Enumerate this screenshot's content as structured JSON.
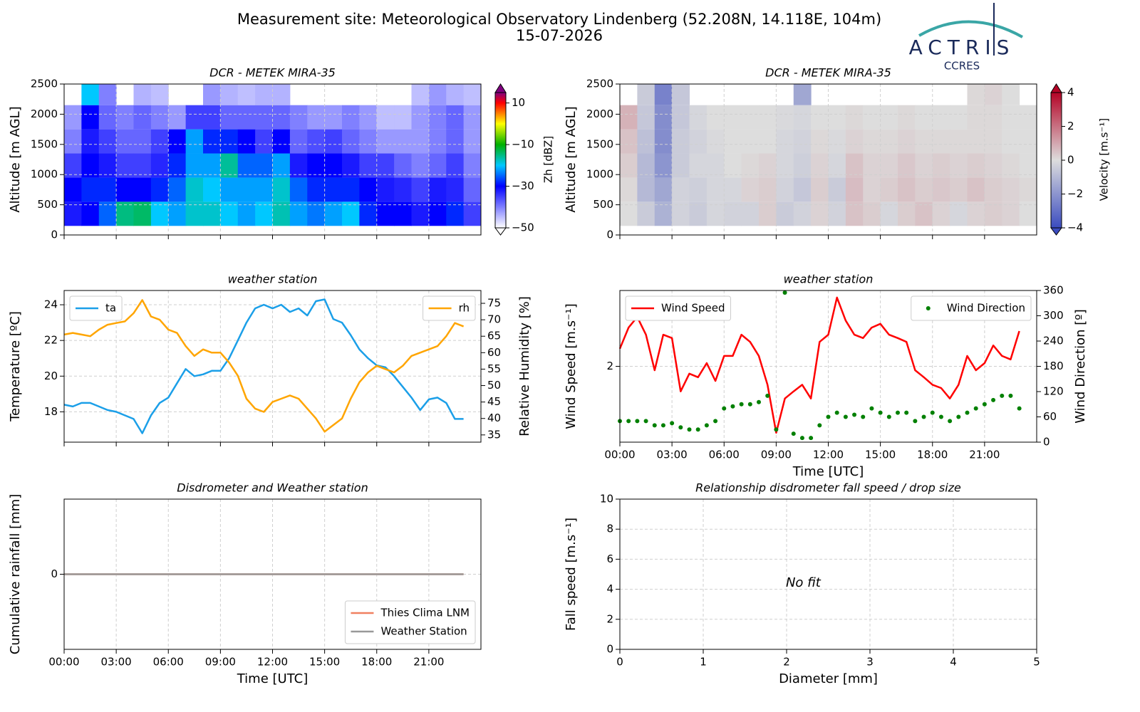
{
  "header": {
    "title": "Measurement site: Meteorological Observatory Lindenberg (52.208N, 14.118E, 104m)",
    "date": "15-07-2026",
    "logo": "ACTRIS",
    "logo_sub": "CCRES"
  },
  "chart_data": [
    {
      "type": "heatmap",
      "title": "DCR - METEK MIRA-35",
      "ylabel": "Altitude [m AGL]",
      "colorbar_label": "Zh [dBZ]",
      "xlim": [
        0,
        24
      ],
      "xticks": [
        0,
        3,
        6,
        9,
        12,
        15,
        18,
        21
      ],
      "xtick_labels": false,
      "ylim": [
        0,
        2500
      ],
      "yticks": [
        0,
        500,
        1000,
        1500,
        2000,
        2500
      ],
      "grid": true,
      "x_edges": [
        0,
        1,
        2,
        3,
        4,
        5,
        6,
        7,
        8,
        9,
        10,
        11,
        12,
        13,
        14,
        15,
        16,
        17,
        18,
        19,
        20,
        21,
        22,
        23,
        24
      ],
      "y_edges": [
        150,
        550,
        950,
        1350,
        1750,
        2150,
        2500
      ],
      "zlim": [
        -50,
        15
      ],
      "zticks": [
        {
          "value": -50,
          "label": "−50"
        },
        {
          "value": -30,
          "label": "−30"
        },
        {
          "value": -10,
          "label": "−10"
        },
        10
      ],
      "colorscale": [
        {
          "value": -50,
          "color": "#ffffff"
        },
        {
          "value": -30,
          "color": "#0000ff"
        },
        {
          "value": -20,
          "color": "#00c8ff"
        },
        {
          "value": -10,
          "color": "#00b000"
        },
        {
          "value": 0,
          "color": "#ffff00"
        },
        {
          "value": 10,
          "color": "#ff0000"
        },
        {
          "value": 15,
          "color": "#800080"
        }
      ],
      "z": [
        [
          -32,
          -30,
          -25,
          -15,
          -14,
          -20,
          -22,
          -18,
          -18,
          -20,
          -22,
          -20,
          -17,
          -22,
          -24,
          -22,
          -20,
          -28,
          -30,
          -30,
          -32,
          -30,
          -28,
          -35
        ],
        [
          -30,
          -28,
          -28,
          -30,
          -30,
          -28,
          -25,
          -18,
          -20,
          -22,
          -22,
          -22,
          -18,
          -25,
          -28,
          -28,
          -28,
          -30,
          -32,
          -33,
          -35,
          -32,
          -33,
          -38
        ],
        [
          -35,
          -30,
          -32,
          -35,
          -35,
          -33,
          -28,
          -22,
          -22,
          -16,
          -25,
          -25,
          -22,
          -32,
          -30,
          -30,
          -32,
          -35,
          -35,
          -38,
          -40,
          -38,
          -35,
          -40
        ],
        [
          -40,
          -32,
          -35,
          -38,
          -38,
          -35,
          -30,
          -22,
          -28,
          -28,
          -30,
          -35,
          -30,
          -38,
          -36,
          -35,
          -38,
          -40,
          -42,
          -42,
          -42,
          -40,
          -38,
          -42
        ],
        [
          -42,
          -30,
          -38,
          -40,
          -38,
          -40,
          -42,
          -35,
          -35,
          -38,
          -38,
          -38,
          -38,
          -40,
          -42,
          -42,
          -40,
          -42,
          -45,
          -45,
          -42,
          -40,
          -38,
          -42
        ],
        [
          null,
          -20,
          -40,
          null,
          -44,
          -45,
          null,
          null,
          -42,
          -44,
          -45,
          -44,
          -44,
          null,
          null,
          null,
          null,
          null,
          null,
          null,
          -45,
          -42,
          -44,
          -45
        ]
      ]
    },
    {
      "type": "heatmap",
      "title": "DCR - METEK MIRA-35",
      "ylabel": "Altitude [m AGL]",
      "colorbar_label": "Velocity [m.s⁻¹]",
      "xlim": [
        0,
        24
      ],
      "xticks": [
        0,
        3,
        6,
        9,
        12,
        15,
        18,
        21
      ],
      "xtick_labels": false,
      "ylim": [
        0,
        2500
      ],
      "yticks": [
        0,
        500,
        1000,
        1500,
        2000,
        2500
      ],
      "grid": true,
      "x_edges": [
        0,
        1,
        2,
        3,
        4,
        5,
        6,
        7,
        8,
        9,
        10,
        11,
        12,
        13,
        14,
        15,
        16,
        17,
        18,
        19,
        20,
        21,
        22,
        23,
        24
      ],
      "y_edges": [
        150,
        550,
        950,
        1350,
        1750,
        2150,
        2500
      ],
      "zlim": [
        -4,
        4
      ],
      "zticks": [
        {
          "value": -4,
          "label": "−4"
        },
        {
          "value": -2,
          "label": "−2"
        },
        0,
        2,
        4
      ],
      "colorscale": [
        {
          "value": -4,
          "color": "#3b4cc0"
        },
        {
          "value": 0,
          "color": "#dddddd"
        },
        {
          "value": 4,
          "color": "#b40426"
        }
      ],
      "z": [
        [
          0,
          -0.5,
          -1.2,
          -0.3,
          -0.5,
          -0.2,
          -0.3,
          -0.3,
          0.3,
          -0.5,
          -0.3,
          0.2,
          -0.3,
          0.5,
          0.3,
          -0.2,
          0.3,
          0.5,
          0.2,
          -0.2,
          0.2,
          0.3,
          0.2,
          0
        ],
        [
          0.1,
          -1.0,
          -1.5,
          -0.3,
          -0.4,
          -0.2,
          -0.2,
          0.2,
          0.3,
          -0.3,
          -0.6,
          0.3,
          -0.5,
          0.6,
          0.2,
          0.3,
          0.5,
          0.3,
          0.4,
          0.3,
          0.5,
          0.3,
          0.2,
          0.1
        ],
        [
          0.3,
          -1.0,
          -2.0,
          -0.5,
          -0.2,
          -0.2,
          0,
          0.1,
          0.2,
          -0.2,
          -0.4,
          0.2,
          -0.2,
          0.5,
          0.2,
          0.2,
          0.4,
          0.2,
          0.3,
          0.2,
          0.3,
          0.2,
          0.1,
          0
        ],
        [
          0.5,
          -0.8,
          -2.2,
          -0.5,
          -0.3,
          -0.1,
          0,
          0,
          0,
          -0.2,
          -0.3,
          0.1,
          -0.1,
          0.2,
          0.1,
          0.1,
          0.2,
          0.1,
          0.1,
          0.1,
          0.1,
          0.1,
          0,
          0
        ],
        [
          0.8,
          -0.6,
          -2.2,
          -0.6,
          -0.2,
          0,
          0,
          0,
          0,
          -0.1,
          -0.2,
          0,
          0,
          0.1,
          0,
          0,
          0.1,
          0,
          0,
          0,
          0.1,
          0.1,
          0,
          0
        ],
        [
          null,
          -0.5,
          -2.5,
          -0.6,
          null,
          null,
          null,
          null,
          null,
          null,
          -1.5,
          null,
          null,
          null,
          null,
          null,
          null,
          null,
          null,
          null,
          0.1,
          0.2,
          0,
          null
        ]
      ]
    },
    {
      "type": "line",
      "title": "weather station",
      "ylabel": "Temperature [ºC]",
      "y2label": "Relative Humidity [%]",
      "xlim": [
        0,
        24
      ],
      "xticks": [
        0,
        3,
        6,
        9,
        12,
        15,
        18,
        21
      ],
      "xtick_labels": false,
      "ylim": [
        16.3,
        24.8
      ],
      "yticks": [
        18,
        20,
        22,
        24
      ],
      "y2lim": [
        32.8,
        78.9
      ],
      "y2ticks": [
        35,
        40,
        45,
        50,
        55,
        60,
        65,
        70,
        75
      ],
      "grid": true,
      "x": [
        0,
        0.5,
        1,
        1.5,
        2,
        2.5,
        3,
        3.5,
        4,
        4.5,
        5,
        5.5,
        6,
        6.5,
        7,
        7.5,
        8,
        8.5,
        9,
        9.5,
        10,
        10.5,
        11,
        11.5,
        12,
        12.5,
        13,
        13.5,
        14,
        14.5,
        15,
        15.5,
        16,
        16.5,
        17,
        17.5,
        18,
        18.5,
        19,
        19.5,
        20,
        20.5,
        21,
        21.5,
        22,
        22.5,
        23
      ],
      "series": [
        {
          "name": "ta",
          "color": "#1b9fe8",
          "legend": "upper left",
          "values": [
            18.4,
            18.3,
            18.5,
            18.5,
            18.3,
            18.1,
            18.0,
            17.8,
            17.6,
            16.8,
            17.8,
            18.5,
            18.8,
            19.6,
            20.4,
            20.0,
            20.1,
            20.3,
            20.3,
            21.0,
            22.0,
            23.0,
            23.8,
            24.0,
            23.8,
            24.0,
            23.6,
            23.8,
            23.4,
            24.2,
            24.3,
            23.2,
            23.0,
            22.3,
            21.5,
            21.0,
            20.6,
            20.5,
            20.0,
            19.4,
            18.8,
            18.1,
            18.7,
            18.8,
            18.5,
            17.6,
            17.6
          ]
        },
        {
          "name": "rh",
          "color": "#ffa500",
          "axis": "y2",
          "legend": "upper right",
          "values": [
            65.5,
            66,
            65.5,
            65,
            67,
            68.5,
            69,
            69.5,
            72,
            76,
            71,
            70,
            67,
            66,
            62,
            59,
            61,
            60,
            60,
            57,
            53,
            46,
            43,
            42,
            45,
            46,
            47,
            46,
            43,
            40,
            36,
            38,
            40,
            46,
            51,
            54,
            56,
            55,
            54,
            56,
            59,
            60,
            61,
            62,
            65,
            69,
            68
          ]
        }
      ]
    },
    {
      "type": "line",
      "title": "weather station",
      "ylabel": "Wind Speed [m.s⁻¹]",
      "y2label": "Wind Direction [º]",
      "xlabel": "Time [UTC]",
      "xlim": [
        0,
        24
      ],
      "xticks": [
        {
          "value": 0,
          "label": "00:00"
        },
        {
          "value": 3,
          "label": "03:00"
        },
        {
          "value": 6,
          "label": "06:00"
        },
        {
          "value": 9,
          "label": "09:00"
        },
        {
          "value": 12,
          "label": "12:00"
        },
        {
          "value": 15,
          "label": "15:00"
        },
        {
          "value": 18,
          "label": "18:00"
        },
        {
          "value": 21,
          "label": "21:00"
        }
      ],
      "ylim": [
        1,
        4
      ],
      "ylog": true,
      "yticks": [
        2
      ],
      "y2lim": [
        0,
        360
      ],
      "y2ticks": [
        0,
        60,
        120,
        180,
        240,
        300,
        360
      ],
      "grid": true,
      "x": [
        0,
        0.5,
        1,
        1.5,
        2,
        2.5,
        3,
        3.5,
        4,
        4.5,
        5,
        5.5,
        6,
        6.5,
        7,
        7.5,
        8,
        8.5,
        9,
        9.5,
        10,
        10.5,
        11,
        11.5,
        12,
        12.5,
        13,
        13.5,
        14,
        14.5,
        15,
        15.5,
        16,
        16.5,
        17,
        17.5,
        18,
        18.5,
        19,
        19.5,
        20,
        20.5,
        21,
        21.5,
        22,
        22.5,
        23
      ],
      "series": [
        {
          "name": "Wind Speed",
          "color": "#ff0000",
          "legend": "upper left",
          "values": [
            2.35,
            2.85,
            3.14,
            2.67,
            1.93,
            2.67,
            2.59,
            1.59,
            1.87,
            1.81,
            2.06,
            1.75,
            2.2,
            2.2,
            2.67,
            2.5,
            2.2,
            1.69,
            1.09,
            1.49,
            1.59,
            1.69,
            1.49,
            2.5,
            2.67,
            3.75,
            3.04,
            2.67,
            2.59,
            2.85,
            2.95,
            2.67,
            2.59,
            2.5,
            1.93,
            1.81,
            1.69,
            1.64,
            1.49,
            1.69,
            2.2,
            1.93,
            2.06,
            2.42,
            2.2,
            2.13,
            2.76
          ]
        },
        {
          "name": "Wind Direction",
          "color": "#008000",
          "axis": "y2",
          "style": "points",
          "legend": "upper right",
          "values": [
            50,
            50,
            50,
            50,
            40,
            40,
            45,
            35,
            30,
            30,
            40,
            50,
            80,
            85,
            90,
            90,
            95,
            110,
            30,
            355,
            20,
            10,
            10,
            40,
            60,
            70,
            60,
            65,
            60,
            80,
            70,
            60,
            70,
            70,
            50,
            60,
            70,
            60,
            50,
            60,
            70,
            80,
            90,
            100,
            110,
            110,
            80
          ]
        }
      ]
    },
    {
      "type": "line",
      "title": "Disdrometer and Weather station",
      "ylabel": "Cumulative rainfall [mm]",
      "xlabel": "Time [UTC]",
      "xlim": [
        0,
        24
      ],
      "xticks": [
        {
          "value": 0,
          "label": "00:00"
        },
        {
          "value": 3,
          "label": "03:00"
        },
        {
          "value": 6,
          "label": "06:00"
        },
        {
          "value": 9,
          "label": "09:00"
        },
        {
          "value": 12,
          "label": "12:00"
        },
        {
          "value": 15,
          "label": "15:00"
        },
        {
          "value": 18,
          "label": "18:00"
        },
        {
          "value": 21,
          "label": "21:00"
        }
      ],
      "ylim": [
        -1,
        1
      ],
      "yticks": [
        0
      ],
      "grid": true,
      "x": [
        0,
        23
      ],
      "series": [
        {
          "name": "Thies Clima LNM",
          "color": "#f08060",
          "legend": "lower right",
          "values": [
            0,
            0
          ]
        },
        {
          "name": "Weather Station",
          "color": "#999999",
          "legend": "lower right",
          "values": [
            0,
            0
          ]
        }
      ]
    },
    {
      "type": "scatter",
      "title": "Relationship disdrometer fall speed / drop size",
      "ylabel": "Fall speed [m.s⁻¹]",
      "xlabel": "Diameter [mm]",
      "annotation": "No fit",
      "xlim": [
        0,
        5
      ],
      "xticks": [
        0,
        1,
        2,
        3,
        4,
        5
      ],
      "ylim": [
        0,
        10
      ],
      "yticks": [
        0,
        2,
        4,
        6,
        8,
        10
      ],
      "grid": true
    }
  ]
}
